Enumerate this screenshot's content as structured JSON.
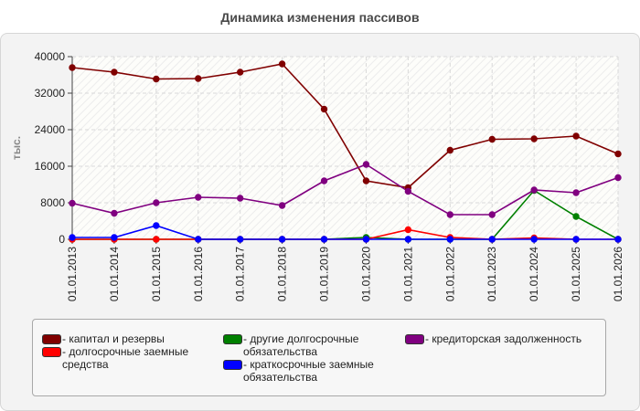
{
  "chart_data": {
    "type": "line",
    "title": "Динамика изменения пассивов",
    "ylabel": "тыс.",
    "xlabel": "",
    "ylim": [
      0,
      40000
    ],
    "yticks": [
      0,
      8000,
      16000,
      24000,
      32000,
      40000
    ],
    "grid": true,
    "legend_position": "bottom",
    "categories": [
      "01.01.2013",
      "01.01.2014",
      "01.01.2015",
      "01.01.2016",
      "01.01.2017",
      "01.01.2018",
      "01.01.2019",
      "01.01.2020",
      "01.01.2021",
      "01.01.2022",
      "01.01.2023",
      "01.01.2024",
      "01.01.2025",
      "01.01.2026"
    ],
    "series": [
      {
        "name": "капитал и резервы",
        "color": "#800000",
        "values": [
          37600,
          36600,
          35100,
          35200,
          36600,
          38400,
          28500,
          12800,
          11300,
          19500,
          21900,
          22000,
          22600,
          18700
        ]
      },
      {
        "name": "долгосрочные заемные средства",
        "color": "#ff0000",
        "values": [
          0,
          0,
          0,
          0,
          0,
          0,
          0,
          0,
          2100,
          400,
          0,
          300,
          0,
          0
        ]
      },
      {
        "name": "другие долгосрочные обязательства",
        "color": "#008000",
        "values": [
          0,
          0,
          0,
          0,
          0,
          0,
          0,
          400,
          0,
          0,
          0,
          10700,
          5000,
          0
        ]
      },
      {
        "name": "краткосрочные заемные обязательства",
        "color": "#0000ff",
        "values": [
          400,
          400,
          3000,
          0,
          0,
          0,
          0,
          0,
          0,
          0,
          0,
          0,
          0,
          0
        ]
      },
      {
        "name": "кредиторская задолженность",
        "color": "#800080",
        "values": [
          7900,
          5700,
          8000,
          9200,
          9000,
          7400,
          12800,
          16400,
          10500,
          5400,
          5400,
          10800,
          10200,
          13500
        ]
      }
    ]
  }
}
